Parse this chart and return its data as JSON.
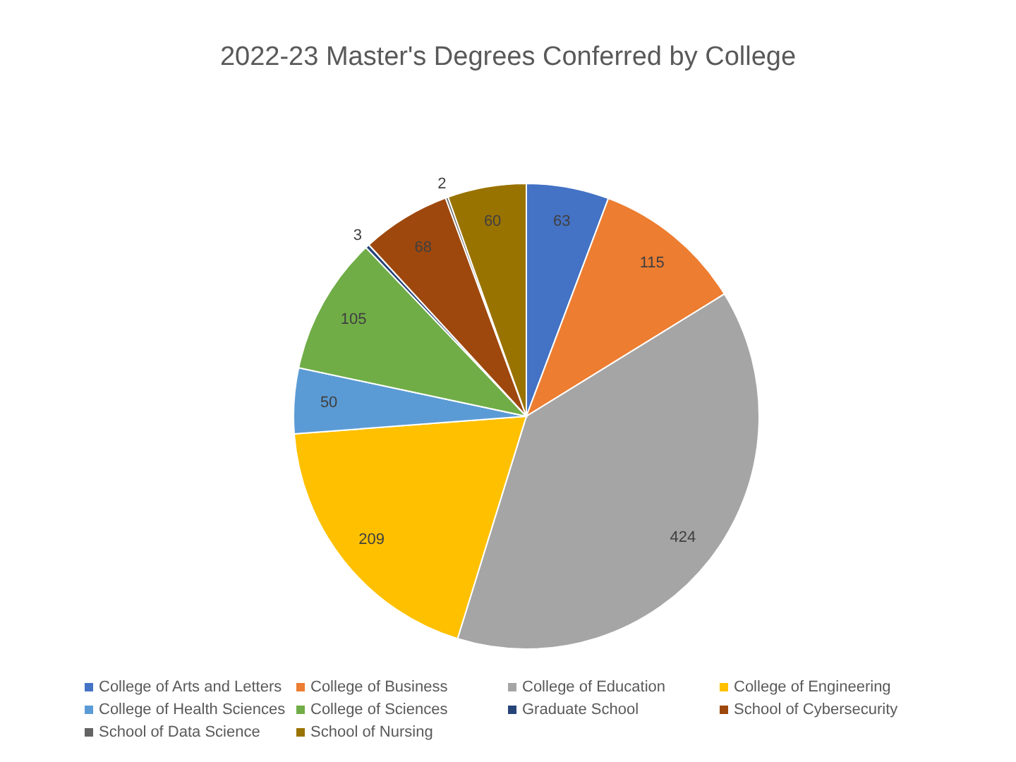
{
  "chart_data": {
    "type": "pie",
    "title": "2022-23 Master's Degrees Conferred by College",
    "categories": [
      "College of Arts and Letters",
      "College of Business",
      "College of Education",
      "College of Engineering",
      "College of Health Sciences",
      "College of Sciences",
      "Graduate School",
      "School of Cybersecurity",
      "School of Data Science",
      "School of Nursing"
    ],
    "values": [
      63,
      115,
      424,
      209,
      50,
      105,
      3,
      68,
      2,
      60
    ],
    "colors": [
      "#4472c4",
      "#ed7d31",
      "#a5a5a5",
      "#ffc000",
      "#5b9bd5",
      "#70ad47",
      "#264478",
      "#9e480e",
      "#636363",
      "#997300"
    ],
    "data_labels": true,
    "legend": "bottom"
  }
}
